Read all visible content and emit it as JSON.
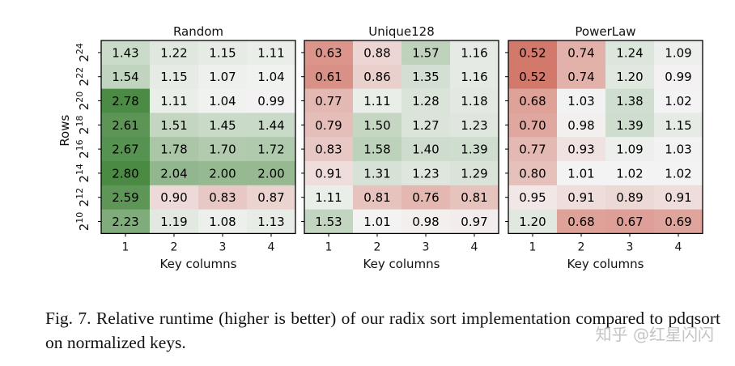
{
  "chart_data": [
    {
      "type": "heatmap",
      "title": "Random",
      "xlabel": "Key columns",
      "ylabel": "Rows",
      "x": [
        "1",
        "2",
        "3",
        "4"
      ],
      "y_exponents": [
        24,
        22,
        20,
        18,
        16,
        14,
        12,
        10
      ],
      "values": [
        [
          "1.43",
          "1.22",
          "1.15",
          "1.11"
        ],
        [
          "1.54",
          "1.15",
          "1.07",
          "1.04"
        ],
        [
          "2.78",
          "1.11",
          "1.04",
          "0.99"
        ],
        [
          "2.61",
          "1.51",
          "1.45",
          "1.44"
        ],
        [
          "2.67",
          "1.78",
          "1.70",
          "1.72"
        ],
        [
          "2.80",
          "2.04",
          "2.00",
          "2.00"
        ],
        [
          "2.59",
          "0.90",
          "0.83",
          "0.87"
        ],
        [
          "2.23",
          "1.19",
          "1.08",
          "1.13"
        ]
      ]
    },
    {
      "type": "heatmap",
      "title": "Unique128",
      "xlabel": "Key columns",
      "x": [
        "1",
        "2",
        "3",
        "4"
      ],
      "y_exponents": [
        24,
        22,
        20,
        18,
        16,
        14,
        12,
        10
      ],
      "values": [
        [
          "0.63",
          "0.88",
          "1.57",
          "1.16"
        ],
        [
          "0.61",
          "0.86",
          "1.35",
          "1.16"
        ],
        [
          "0.77",
          "1.11",
          "1.28",
          "1.18"
        ],
        [
          "0.79",
          "1.50",
          "1.27",
          "1.23"
        ],
        [
          "0.83",
          "1.58",
          "1.40",
          "1.39"
        ],
        [
          "0.91",
          "1.31",
          "1.23",
          "1.29"
        ],
        [
          "1.11",
          "0.81",
          "0.76",
          "0.81"
        ],
        [
          "1.53",
          "1.01",
          "0.98",
          "0.97"
        ]
      ]
    },
    {
      "type": "heatmap",
      "title": "PowerLaw",
      "xlabel": "Key columns",
      "x": [
        "1",
        "2",
        "3",
        "4"
      ],
      "y_exponents": [
        24,
        22,
        20,
        18,
        16,
        14,
        12,
        10
      ],
      "values": [
        [
          "0.52",
          "0.74",
          "1.24",
          "1.09"
        ],
        [
          "0.52",
          "0.74",
          "1.20",
          "0.99"
        ],
        [
          "0.68",
          "1.03",
          "1.38",
          "1.02"
        ],
        [
          "0.70",
          "0.98",
          "1.39",
          "1.15"
        ],
        [
          "0.77",
          "0.93",
          "1.09",
          "1.03"
        ],
        [
          "0.80",
          "1.01",
          "1.02",
          "1.02"
        ],
        [
          "0.95",
          "0.91",
          "0.89",
          "0.91"
        ],
        [
          "1.20",
          "0.68",
          "0.67",
          "0.69"
        ]
      ]
    }
  ],
  "colors": {
    "high": "#4a8a43",
    "neutral": "#f4f4f4",
    "low": "#d3796c"
  },
  "caption": "Fig. 7.  Relative runtime (higher is better) of our radix sort implementation compared to pdqsort on normalized keys.",
  "watermark": "知乎 @红星闪闪"
}
